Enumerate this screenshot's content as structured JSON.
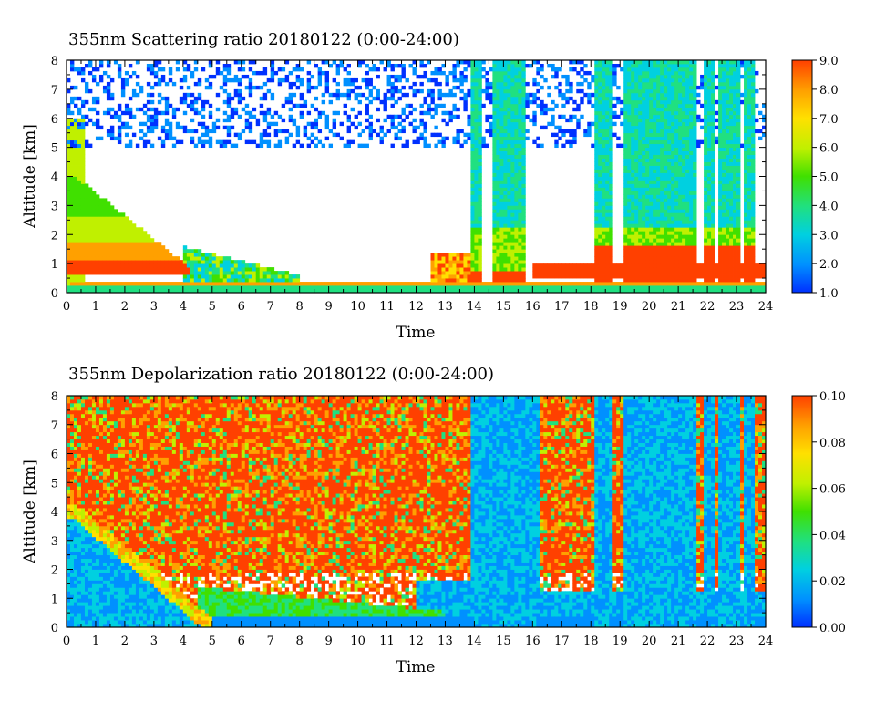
{
  "chart_data": [
    {
      "type": "heatmap",
      "title": "355nm Scattering ratio  20180122 (0:00-24:00)",
      "xlabel": "Time",
      "ylabel": "Altitude [km]",
      "xlim": [
        0,
        24
      ],
      "ylim": [
        0,
        8
      ],
      "x_ticks": [
        "0",
        "1",
        "2",
        "3",
        "4",
        "5",
        "6",
        "7",
        "8",
        "9",
        "10",
        "11",
        "12",
        "13",
        "14",
        "15",
        "16",
        "17",
        "18",
        "19",
        "20",
        "21",
        "22",
        "23",
        "24"
      ],
      "y_ticks": [
        "0",
        "1",
        "2",
        "3",
        "4",
        "5",
        "6",
        "7",
        "8"
      ],
      "colorbar": {
        "range": [
          1.0,
          9.0
        ],
        "ticks": [
          "1.0",
          "2.0",
          "3.0",
          "4.0",
          "5.0",
          "6.0",
          "7.0",
          "8.0",
          "9.0"
        ]
      },
      "colors": [
        "#0030ff",
        "#0090ff",
        "#00d0e0",
        "#20e080",
        "#40e000",
        "#c0f000",
        "#ffe000",
        "#ffa000",
        "#ff4000"
      ]
    },
    {
      "type": "heatmap",
      "title": "355nm Depolarization ratio  20180122 (0:00-24:00)",
      "xlabel": "Time",
      "ylabel": "Altitude [km]",
      "xlim": [
        0,
        24
      ],
      "ylim": [
        0,
        8
      ],
      "x_ticks": [
        "0",
        "1",
        "2",
        "3",
        "4",
        "5",
        "6",
        "7",
        "8",
        "9",
        "10",
        "11",
        "12",
        "13",
        "14",
        "15",
        "16",
        "17",
        "18",
        "19",
        "20",
        "21",
        "22",
        "23",
        "24"
      ],
      "y_ticks": [
        "0",
        "1",
        "2",
        "3",
        "4",
        "5",
        "6",
        "7",
        "8"
      ],
      "colorbar": {
        "range": [
          0.0,
          0.1
        ],
        "ticks": [
          "0.00",
          "0.02",
          "0.04",
          "0.06",
          "0.08",
          "0.10"
        ]
      },
      "colors": [
        "#0030ff",
        "#0090ff",
        "#00d0e0",
        "#20e080",
        "#40e000",
        "#c0f000",
        "#ffe000",
        "#ffa000",
        "#ff4000"
      ]
    }
  ]
}
